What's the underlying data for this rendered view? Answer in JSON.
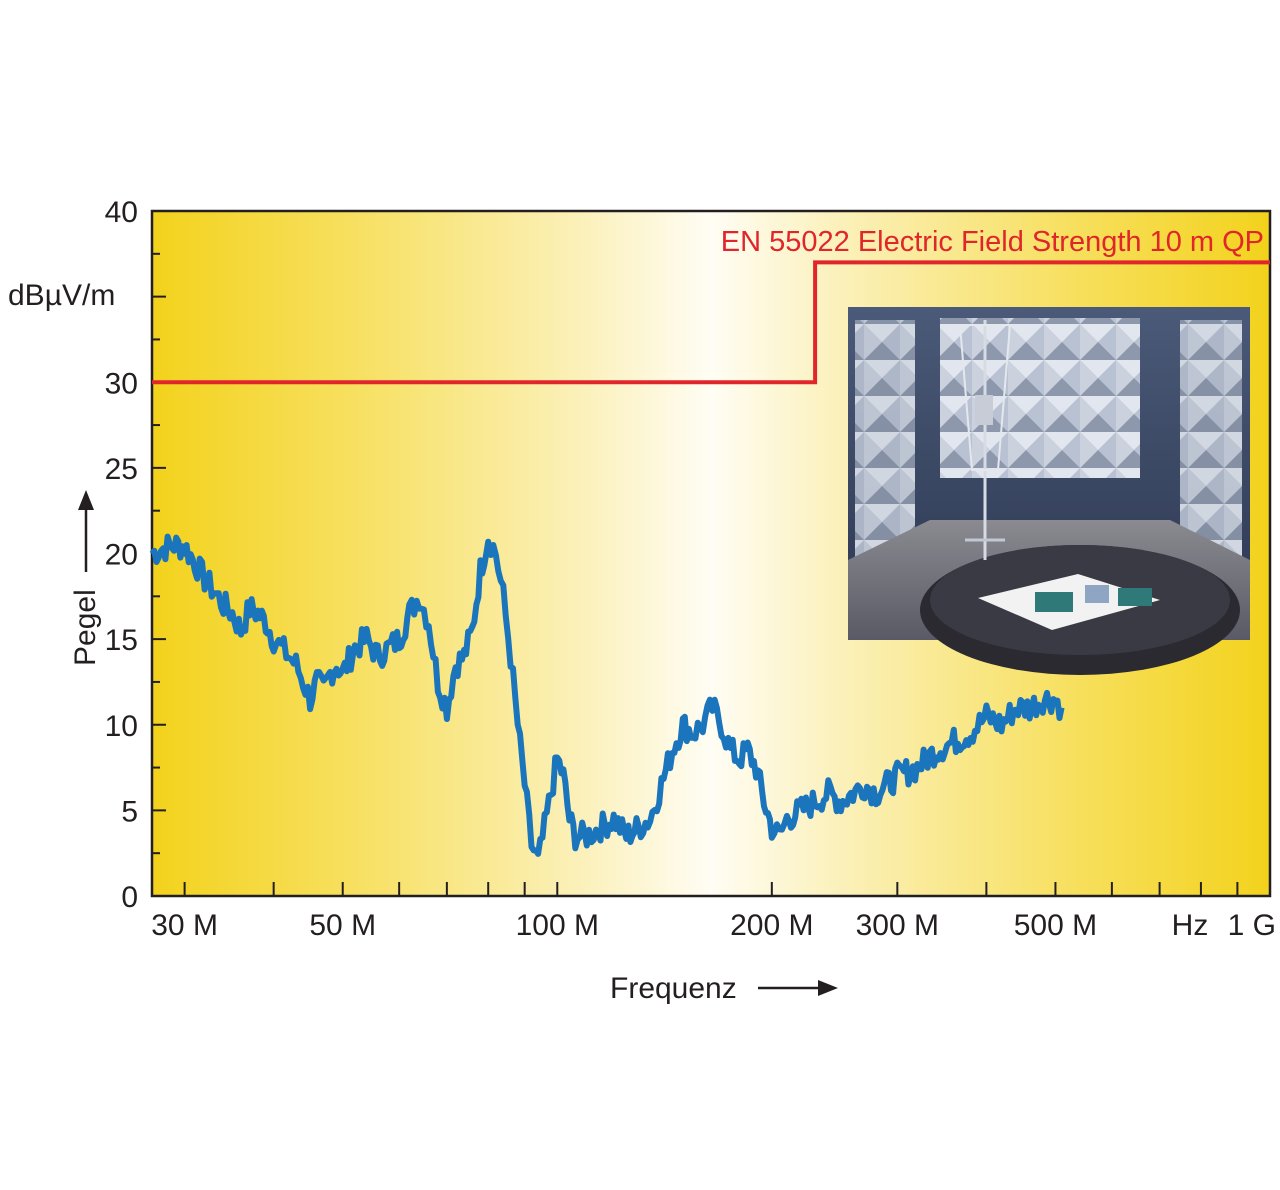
{
  "chart_data": {
    "type": "line",
    "x_scale": "log",
    "xlim": [
      27000000,
      1000000000
    ],
    "ylim": [
      0,
      40
    ],
    "y_unit": "dBµV/m",
    "xlabel": "Frequenz",
    "ylabel": "Pegel",
    "y_ticks": [
      0,
      5,
      10,
      15,
      20,
      25,
      30,
      40
    ],
    "x_tick_labels": [
      {
        "value": 30000000,
        "label": "30 M"
      },
      {
        "value": 50000000,
        "label": "50 M"
      },
      {
        "value": 100000000,
        "label": "100 M"
      },
      {
        "value": 200000000,
        "label": "200 M"
      },
      {
        "value": 300000000,
        "label": "300 M"
      },
      {
        "value": 500000000,
        "label": "500 M"
      },
      {
        "value": 1000000000,
        "label": "1 G"
      }
    ],
    "x_unit_label": "Hz",
    "x_minor_ticks": [
      30000000,
      40000000,
      50000000,
      60000000,
      70000000,
      80000000,
      90000000,
      100000000,
      200000000,
      300000000,
      400000000,
      500000000,
      600000000,
      700000000,
      800000000,
      900000000
    ],
    "limit_line": {
      "name": "EN 55022 Electric Field Strength 10 m QP",
      "color": "#e0262b",
      "segments": [
        {
          "x_start": 27000000,
          "x_end": 230000000,
          "y": 30
        },
        {
          "x_start": 230000000,
          "x_end": 1000000000,
          "y": 37
        }
      ]
    },
    "series": [
      {
        "color": "#1b75bc",
        "points": [
          [
            27000000,
            20
          ],
          [
            28000000,
            20.3
          ],
          [
            29000000,
            20.5
          ],
          [
            30000000,
            20.4
          ],
          [
            31000000,
            19.5
          ],
          [
            32000000,
            18.5
          ],
          [
            33000000,
            17.8
          ],
          [
            34000000,
            17
          ],
          [
            35000000,
            16.5
          ],
          [
            36000000,
            15.5
          ],
          [
            37000000,
            16.8
          ],
          [
            38000000,
            16.5
          ],
          [
            39000000,
            16
          ],
          [
            40000000,
            15
          ],
          [
            41000000,
            14.5
          ],
          [
            42000000,
            14
          ],
          [
            43000000,
            13.5
          ],
          [
            44000000,
            12.5
          ],
          [
            45000000,
            11.5
          ],
          [
            46000000,
            12.5
          ],
          [
            47000000,
            12
          ],
          [
            48000000,
            13
          ],
          [
            49000000,
            13.5
          ],
          [
            50000000,
            13
          ],
          [
            52000000,
            14.5
          ],
          [
            54000000,
            15
          ],
          [
            56000000,
            14
          ],
          [
            58000000,
            14.5
          ],
          [
            60000000,
            15
          ],
          [
            62000000,
            16.5
          ],
          [
            64000000,
            17.5
          ],
          [
            66000000,
            16
          ],
          [
            68000000,
            12.5
          ],
          [
            70000000,
            11
          ],
          [
            72000000,
            13.5
          ],
          [
            74000000,
            14
          ],
          [
            76000000,
            15.5
          ],
          [
            78000000,
            19
          ],
          [
            80000000,
            21
          ],
          [
            82000000,
            20
          ],
          [
            84000000,
            17.5
          ],
          [
            86000000,
            14
          ],
          [
            88000000,
            10
          ],
          [
            90000000,
            6.5
          ],
          [
            92000000,
            3
          ],
          [
            94000000,
            2
          ],
          [
            96000000,
            4
          ],
          [
            98000000,
            6
          ],
          [
            100000000,
            8
          ],
          [
            102000000,
            7
          ],
          [
            104000000,
            4.5
          ],
          [
            106000000,
            3.5
          ],
          [
            110000000,
            3.5
          ],
          [
            115000000,
            4
          ],
          [
            120000000,
            4.5
          ],
          [
            125000000,
            3.5
          ],
          [
            130000000,
            4
          ],
          [
            135000000,
            4.5
          ],
          [
            140000000,
            6.5
          ],
          [
            145000000,
            8.5
          ],
          [
            150000000,
            10
          ],
          [
            155000000,
            9.5
          ],
          [
            160000000,
            10
          ],
          [
            165000000,
            11
          ],
          [
            170000000,
            10
          ],
          [
            175000000,
            8.5
          ],
          [
            180000000,
            8
          ],
          [
            185000000,
            8.5
          ],
          [
            190000000,
            7.5
          ],
          [
            195000000,
            5.5
          ],
          [
            200000000,
            4
          ],
          [
            205000000,
            3.5
          ],
          [
            210000000,
            4.5
          ],
          [
            220000000,
            5
          ],
          [
            230000000,
            5.5
          ],
          [
            240000000,
            6
          ],
          [
            250000000,
            5.5
          ],
          [
            260000000,
            6
          ],
          [
            270000000,
            6.5
          ],
          [
            280000000,
            6
          ],
          [
            290000000,
            6.5
          ],
          [
            300000000,
            7
          ],
          [
            320000000,
            7.5
          ],
          [
            340000000,
            8.5
          ],
          [
            360000000,
            9
          ],
          [
            380000000,
            9.5
          ],
          [
            400000000,
            10.5
          ],
          [
            420000000,
            10
          ],
          [
            440000000,
            11
          ],
          [
            460000000,
            11
          ],
          [
            480000000,
            11.5
          ],
          [
            500000000,
            11.5
          ],
          [
            510000000,
            11
          ]
        ]
      }
    ]
  },
  "inset": {
    "photo_name": "anechoic-chamber-photo"
  }
}
